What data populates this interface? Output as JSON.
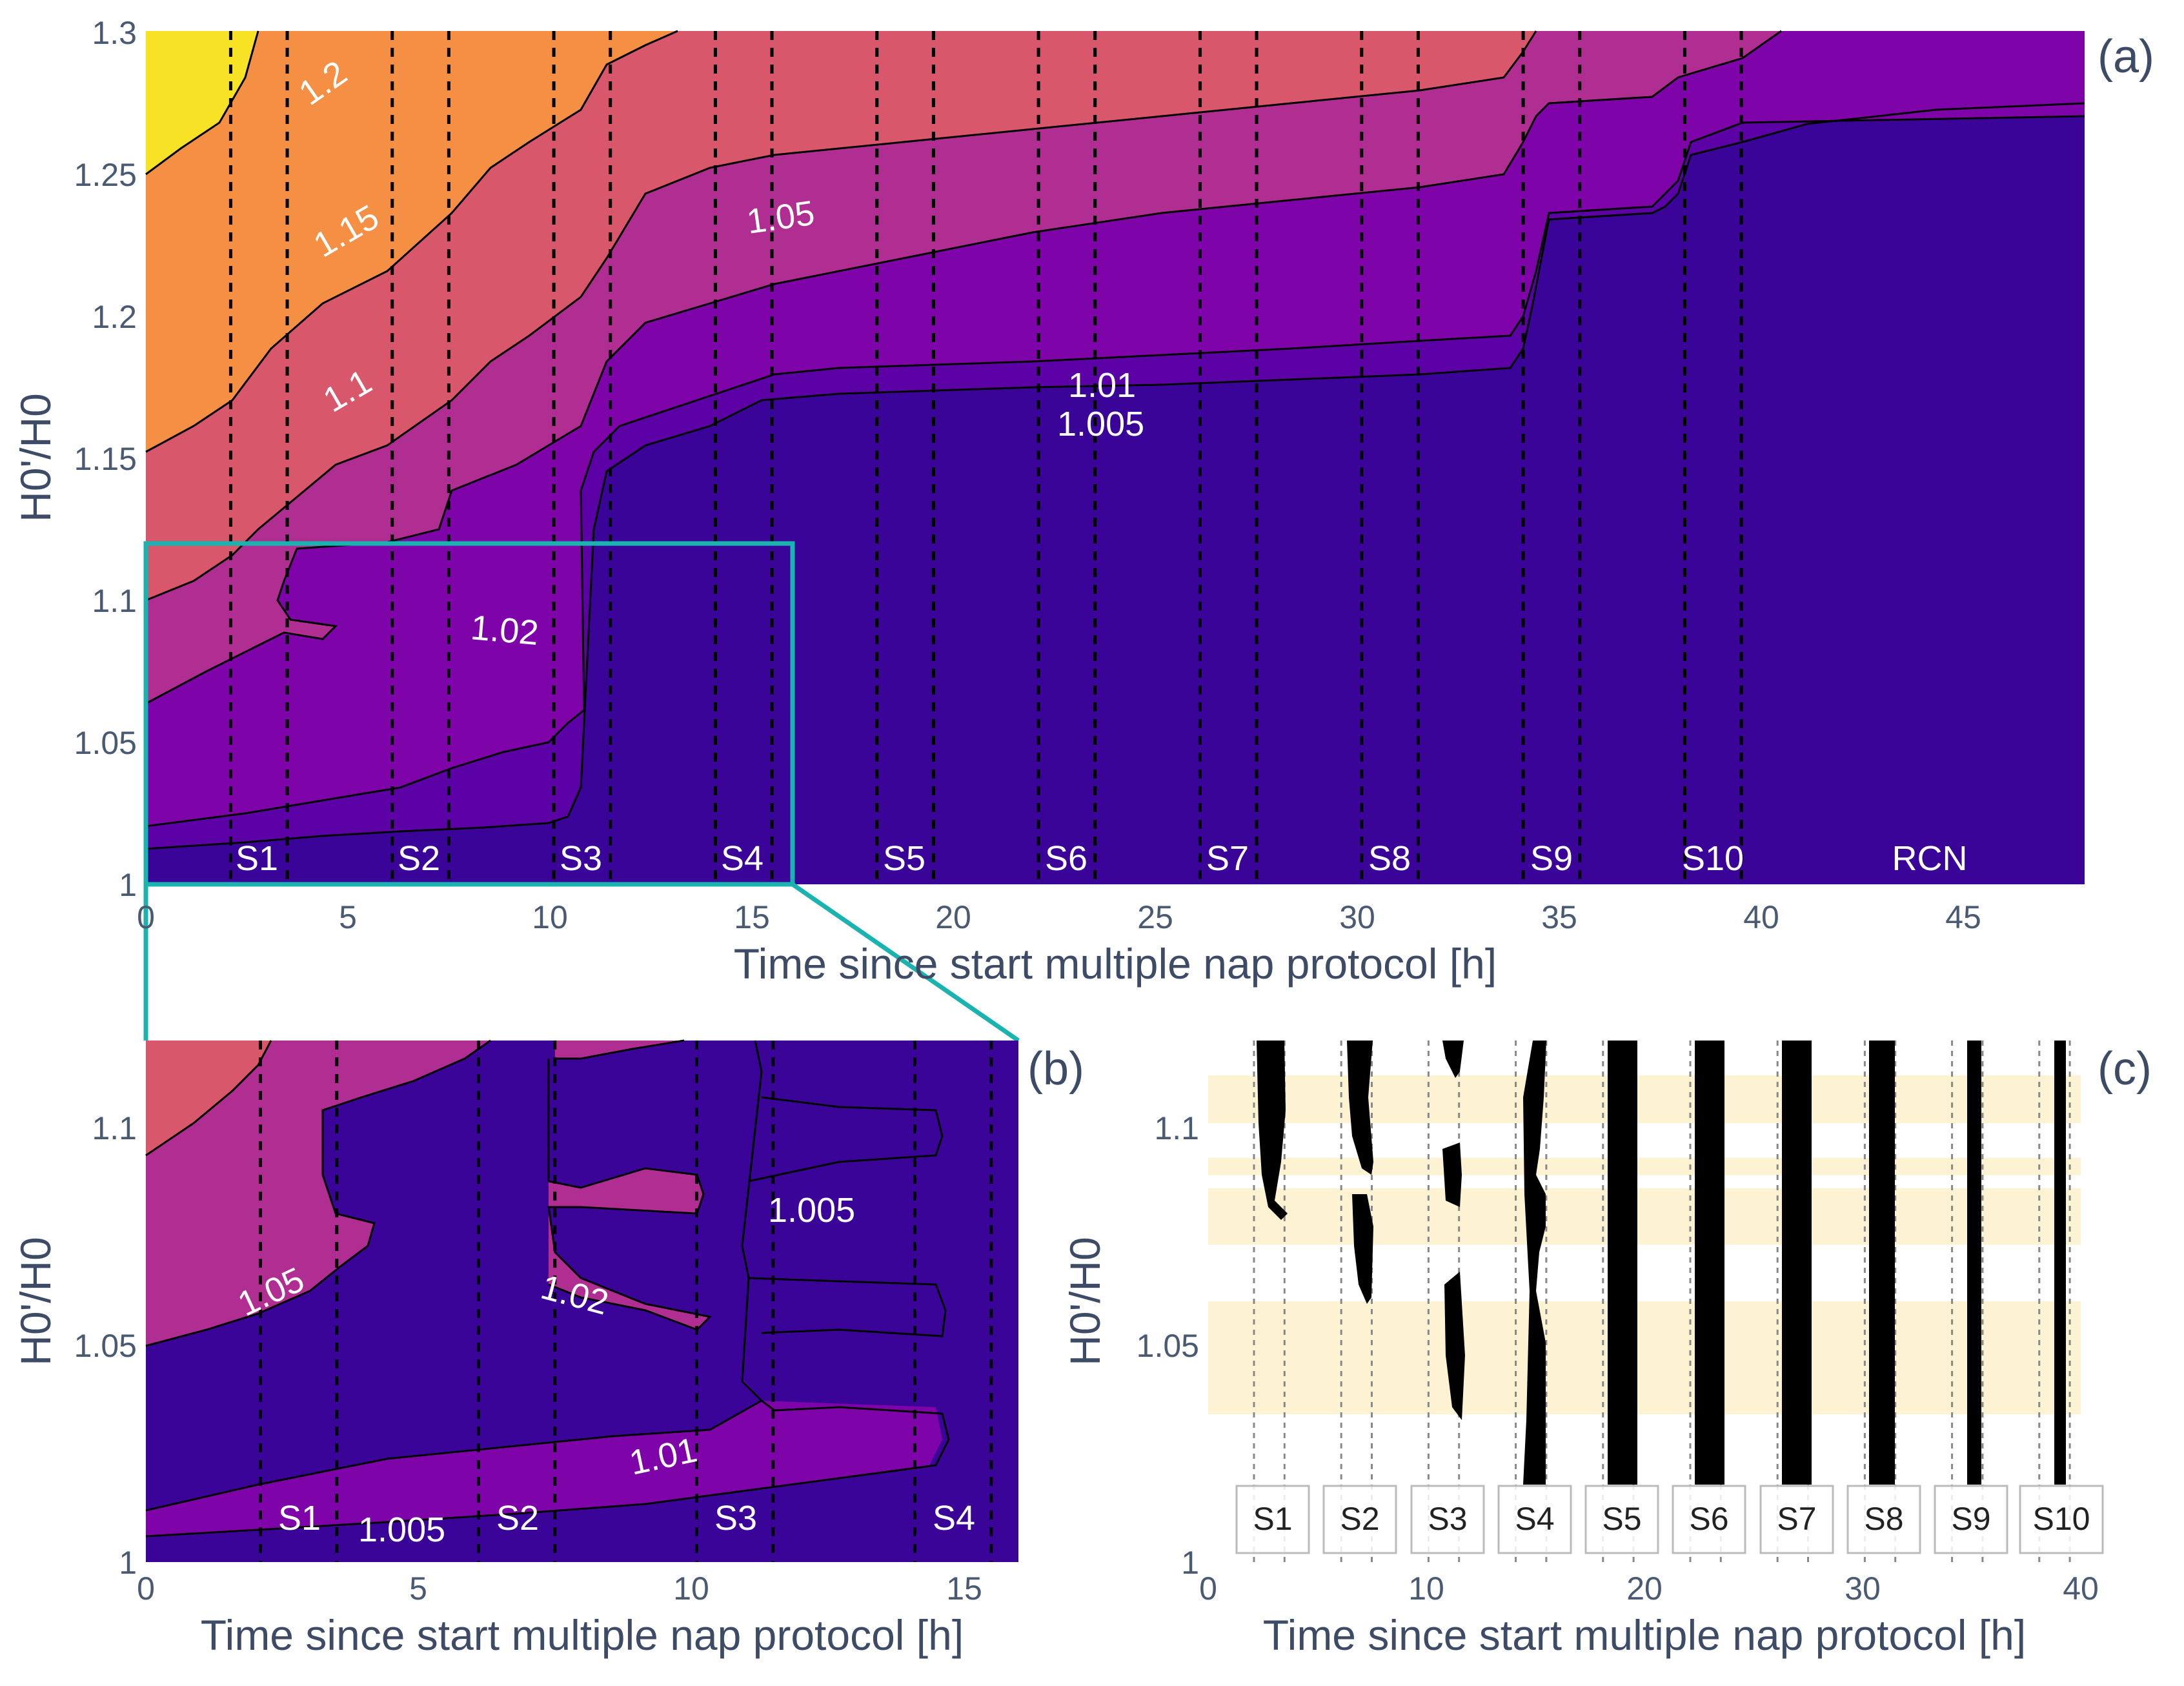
{
  "chart_data": [
    {
      "id": "a",
      "type": "contour",
      "panel_label": "(a)",
      "xlabel": "Time since start multiple nap protocol [h]",
      "ylabel": "H0'/H0",
      "xlim": [
        0,
        48
      ],
      "ylim": [
        1,
        1.3
      ],
      "xticks": [
        "0",
        "5",
        "10",
        "15",
        "20",
        "25",
        "30",
        "35",
        "40",
        "45"
      ],
      "yticks": [
        "1",
        "1.05",
        "1.1",
        "1.15",
        "1.2",
        "1.25",
        "1.3"
      ],
      "contour_labels": [
        "1.2",
        "1.15",
        "1.1",
        "1.05",
        "1.02",
        "1.01",
        "1.005"
      ],
      "session_labels": [
        "S1",
        "S2",
        "S3",
        "S4",
        "S5",
        "S6",
        "S7",
        "S8",
        "S9",
        "S10",
        "RCN"
      ],
      "nap_boundaries": [
        2.1,
        3.5,
        6.1,
        7.5,
        10.1,
        11.5,
        14.1,
        15.5,
        18.1,
        19.5,
        22.1,
        23.5,
        26.1,
        27.5,
        30.1,
        31.5,
        34.1,
        35.5,
        38.1,
        39.5
      ],
      "zoom_box": {
        "x": [
          0,
          16
        ],
        "y": [
          1,
          1.12
        ]
      }
    },
    {
      "id": "b",
      "type": "contour",
      "panel_label": "(b)",
      "xlabel": "Time since start multiple nap protocol [h]",
      "ylabel": "H0'/H0",
      "xlim": [
        0,
        16
      ],
      "ylim": [
        1,
        1.12
      ],
      "xticks": [
        "0",
        "5",
        "10",
        "15"
      ],
      "yticks": [
        "1",
        "1.05",
        "1.1"
      ],
      "contour_labels": [
        "1.05",
        "1.02",
        "1.005",
        "1.01",
        "1.005"
      ],
      "session_labels": [
        "S1",
        "S2",
        "S3",
        "S4"
      ]
    },
    {
      "id": "c",
      "type": "region",
      "panel_label": "(c)",
      "xlabel": "Time since start multiple nap protocol [h]",
      "ylabel": "H0'/H0",
      "xlim": [
        0,
        40
      ],
      "ylim": [
        1,
        1.12
      ],
      "xticks": [
        "0",
        "10",
        "20",
        "30",
        "40"
      ],
      "yticks": [
        "1",
        "1.05",
        "1.1"
      ],
      "session_labels": [
        "S1",
        "S2",
        "S3",
        "S4",
        "S5",
        "S6",
        "S7",
        "S8",
        "S9",
        "S10"
      ],
      "highlight_bands": [
        [
          1.034,
          1.06
        ],
        [
          1.073,
          1.086
        ],
        [
          1.089,
          1.093
        ],
        [
          1.101,
          1.112
        ]
      ]
    }
  ],
  "colors": {
    "level1": "#3a0498",
    "level2": "#5c01a6",
    "level3": "#7e03a8",
    "level4": "#b02e91",
    "level5": "#d8576b",
    "level6": "#f48f44",
    "level7": "#f7e225",
    "zoom_box": "#1ab3b0",
    "band": "#fdf2d1",
    "axis_text": "#4a5a72"
  }
}
